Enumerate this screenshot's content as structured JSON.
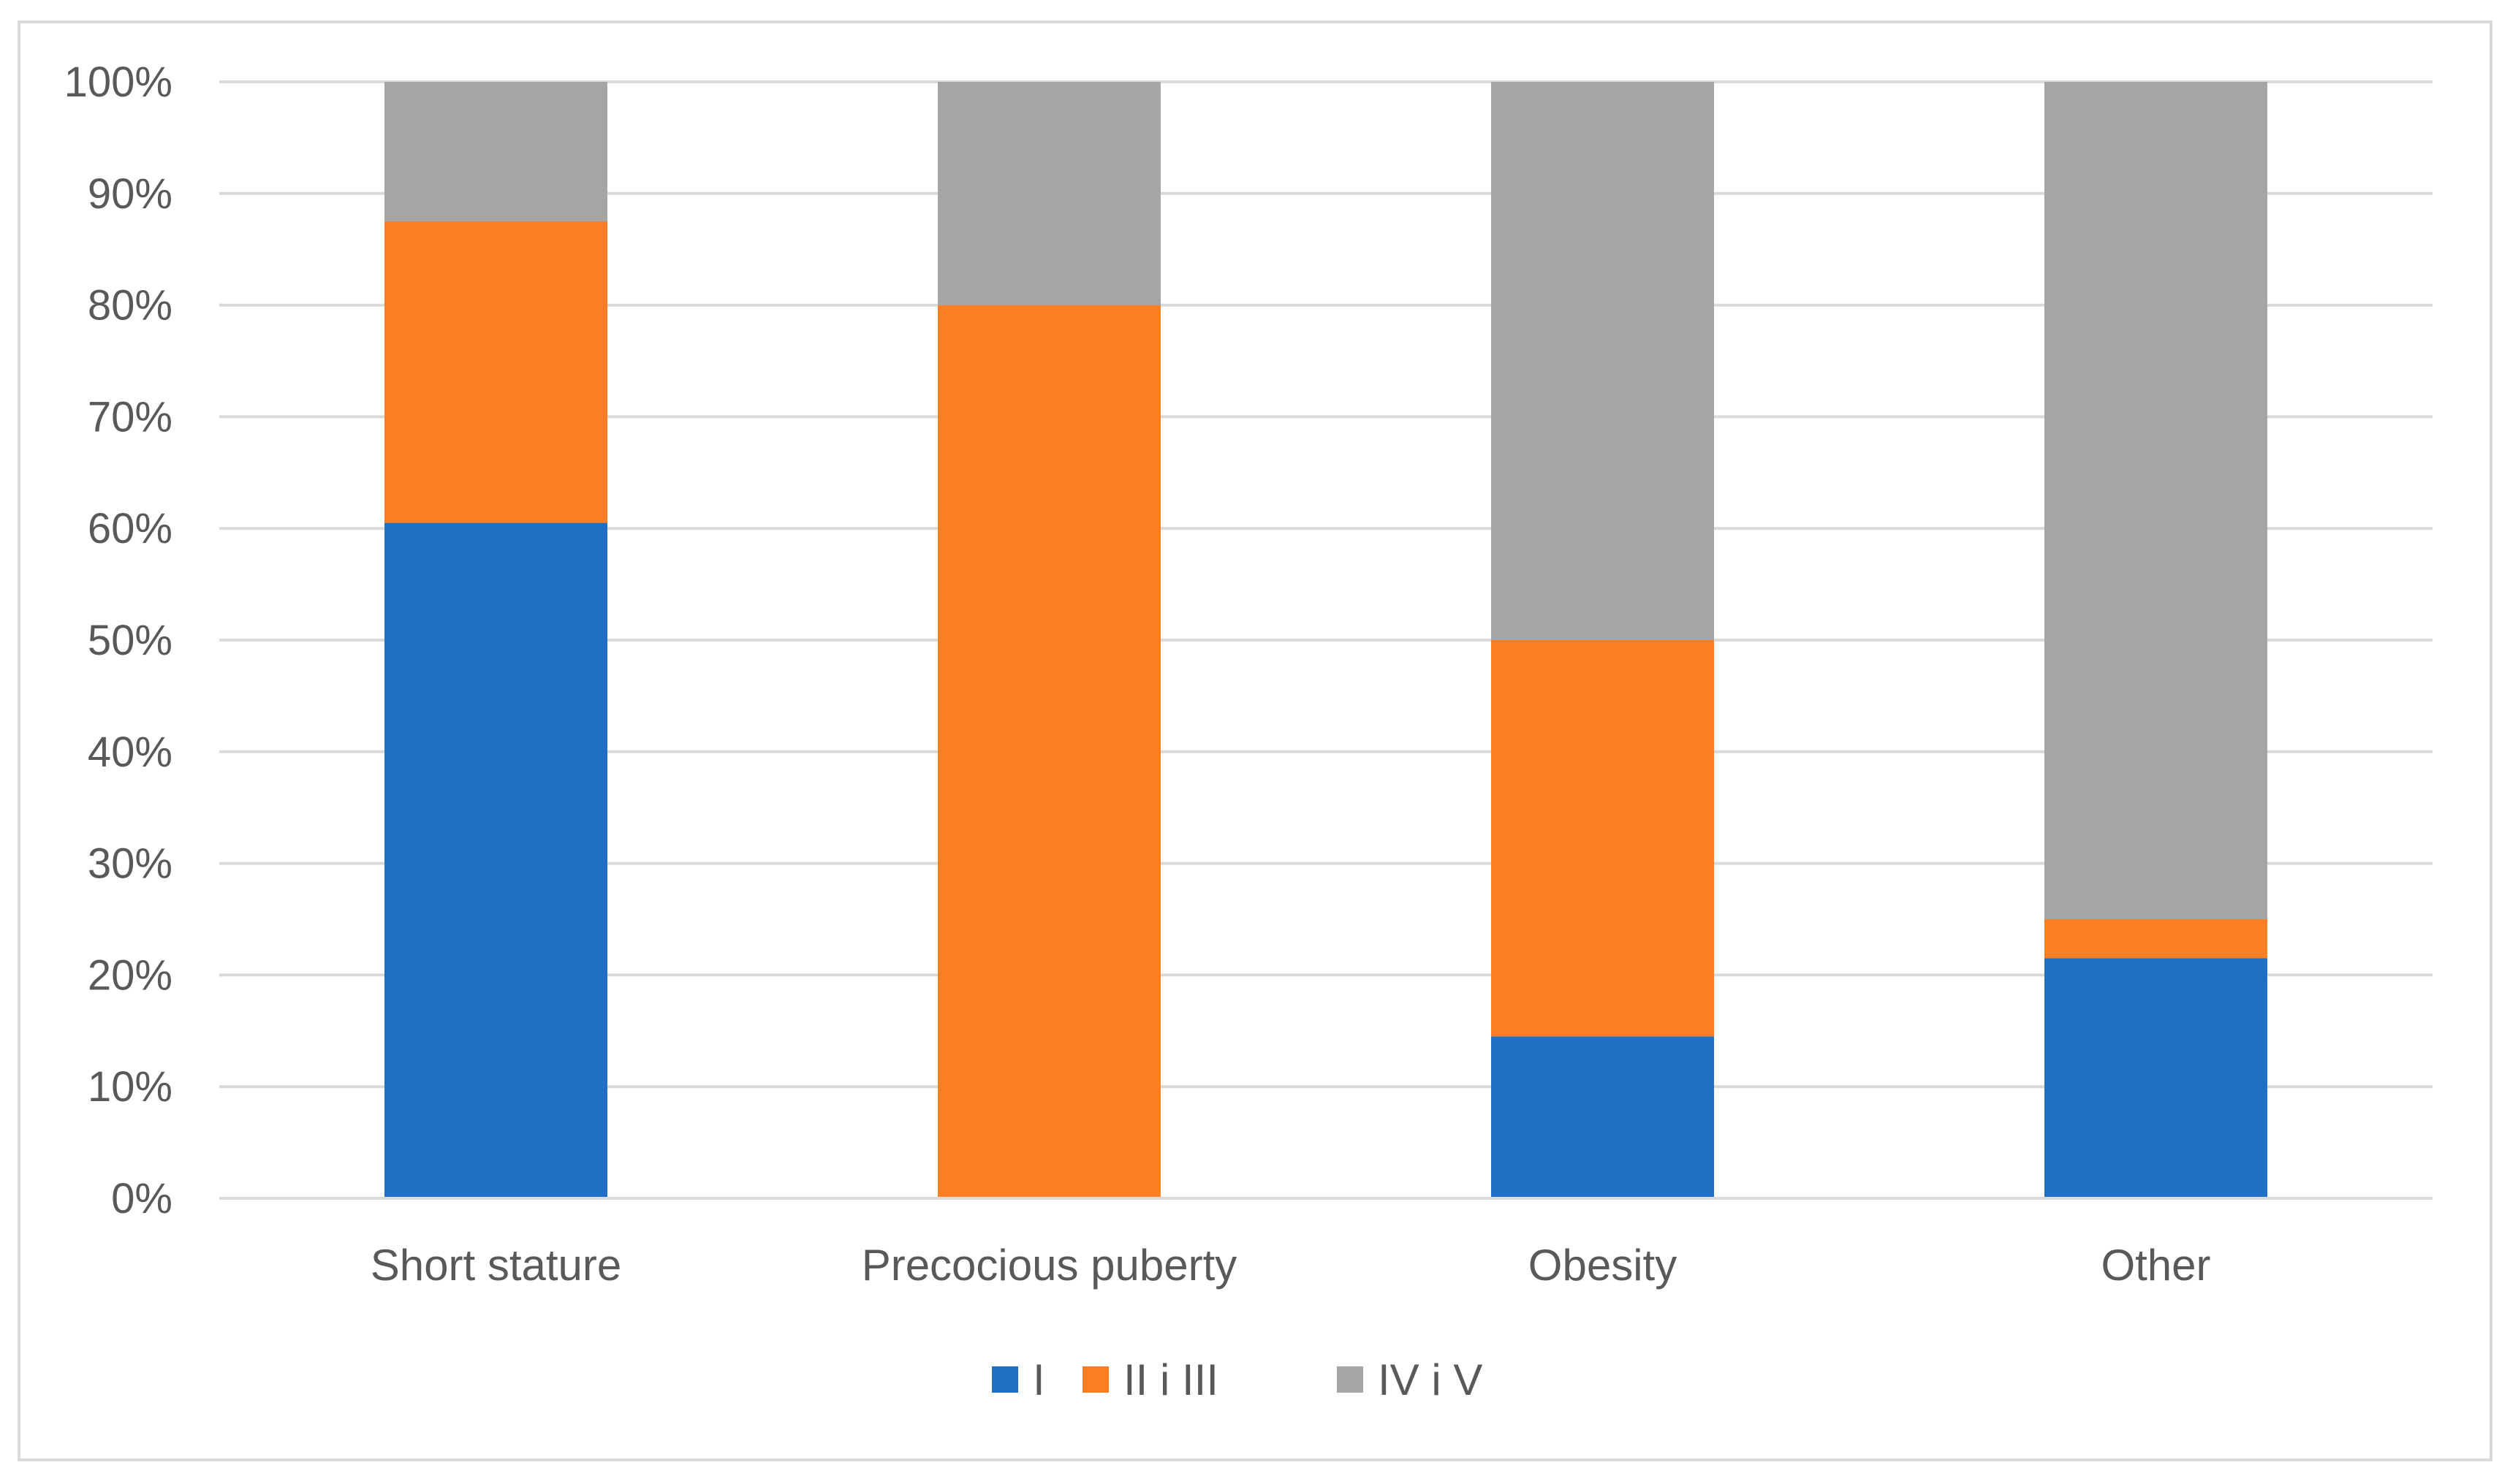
{
  "chart_data": {
    "type": "bar",
    "stacked": true,
    "title": "",
    "xlabel": "",
    "ylabel": "",
    "ylim": [
      0,
      100
    ],
    "yticks": [
      "0%",
      "10%",
      "20%",
      "30%",
      "40%",
      "50%",
      "60%",
      "70%",
      "80%",
      "90%",
      "100%"
    ],
    "grid": true,
    "legend_position": "bottom",
    "categories": [
      "Short stature",
      "Precocious puberty",
      "Obesity",
      "Other"
    ],
    "series": [
      {
        "name": "I",
        "color": "#1f6fc5",
        "values": [
          60.5,
          0,
          14.5,
          21.5
        ]
      },
      {
        "name": "II i III",
        "color": "#fd7e23",
        "values": [
          27,
          80,
          35.5,
          3.5
        ]
      },
      {
        "name": "IV i V",
        "color": "#a5a5a5",
        "values": [
          12.5,
          20,
          50,
          75
        ]
      }
    ]
  }
}
